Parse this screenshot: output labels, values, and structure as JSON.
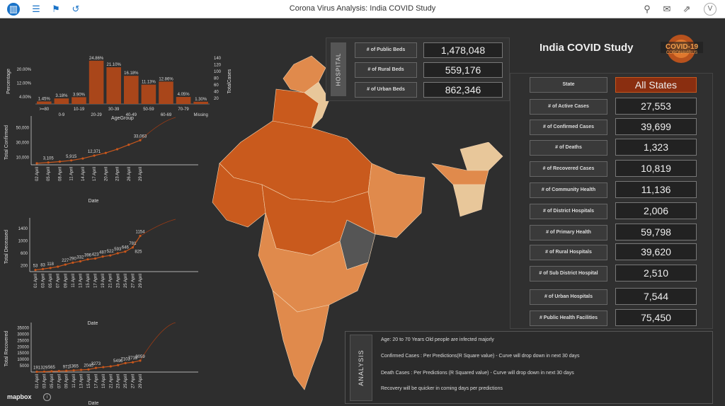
{
  "window": {
    "title": "Corona Virus Analysis: India COVID Study"
  },
  "toolbar": {
    "avatar_initial": "V"
  },
  "logo": {
    "line1": "COVID-19",
    "line2": "CORONAVIRUS"
  },
  "study_title": "India COVID Study",
  "hospital": {
    "tab": "HOSPITAL",
    "rows": [
      {
        "label": "# of Public Beds",
        "value": "1,478,048"
      },
      {
        "label": "# of Rural Beds",
        "value": "559,176"
      },
      {
        "label": "# of Urban Beds",
        "value": "862,346"
      }
    ]
  },
  "state_filter": {
    "label": "State",
    "value": "All States"
  },
  "kpis": [
    {
      "label": "# of Active Cases",
      "value": "27,553"
    },
    {
      "label": "# of Confirmed Cases",
      "value": "39,699"
    },
    {
      "label": "# of Deaths",
      "value": "1,323"
    },
    {
      "label": "# of Recovered Cases",
      "value": "10,819"
    },
    {
      "label": "# of Community Health",
      "value": "11,136"
    },
    {
      "label": "# of District Hospitals",
      "value": "2,006"
    },
    {
      "label": "# of Primary Health",
      "value": "59,798"
    },
    {
      "label": "# of Rural Hospitals",
      "value": "39,620"
    },
    {
      "label": "# of Sub District Hospital",
      "value": "2,510"
    },
    {
      "label": "# of Urban Hospitals",
      "value": "7,544"
    },
    {
      "label": "# Public Health Facilities",
      "value": "75,450"
    }
  ],
  "analysis": {
    "tab": "ANALYSIS",
    "lines": [
      "Age: 20 to 70 Years Old people are infected majorly",
      "Confirmed Cases : Per Predictions(R Square value) - Curve will drop down in next 30 days",
      "Death Cases : Per Predictions (R Squared value) - Curve will drop down in next 30 days",
      "Recovery will be quicker in coming days per predictions"
    ]
  },
  "attribution": "mapbox",
  "colors": {
    "accent": "#c8571c",
    "bar": "#a9461a",
    "map_dark": "#c95a1d",
    "map_mid": "#e08a4c",
    "map_light": "#e8c79a"
  },
  "chart_data": [
    {
      "type": "bar",
      "categories": [
        ">=80",
        "0-9",
        "10-19",
        "20-29",
        "30-39",
        "40-49",
        "50-59",
        "60-69",
        "70-79",
        "Missing"
      ],
      "values": [
        1.45,
        3.18,
        3.9,
        24.86,
        21.1,
        16.18,
        11.13,
        12.86,
        4.05,
        1.3
      ],
      "data_labels": [
        "1.45%",
        "3.18%",
        "3.90%",
        "24.86%",
        "21.10%",
        "16.18%",
        "11.13%",
        "12.86%",
        "4.05%",
        "1.30%"
      ],
      "ylabel": "Percentage",
      "y2label": "TotalCases",
      "xlabel": "AgeGroup",
      "yticks": [
        "4.00%",
        "12.00%",
        "20.00%"
      ],
      "y2ticks": [
        "20",
        "40",
        "60",
        "80",
        "100",
        "120",
        "140"
      ],
      "ylim": [
        0,
        26
      ]
    },
    {
      "type": "line",
      "ylabel": "Total Confirmed",
      "xlabel": "Date",
      "x": [
        "02 April",
        "05 April",
        "08 April",
        "11 April",
        "14 April",
        "17 April",
        "20 April",
        "23 April",
        "26 April",
        "29 April"
      ],
      "values": [
        2000,
        3105,
        4300,
        5915,
        8500,
        12371,
        16000,
        21000,
        27000,
        33063
      ],
      "data_labels": [
        "",
        "3,105",
        "",
        "5,915",
        "",
        "12,371",
        "",
        "",
        "",
        "33,063"
      ],
      "yticks": [
        "10,000",
        "30,000",
        "50,000"
      ],
      "ylim": [
        0,
        60000
      ]
    },
    {
      "type": "line",
      "ylabel": "Total Deceased",
      "xlabel": "Date",
      "x": [
        "01 April",
        "03 April",
        "05 April",
        "07 April",
        "09 April",
        "11 April",
        "13 April",
        "15 April",
        "17 April",
        "19 April",
        "21 April",
        "23 April",
        "25 April",
        "27 April",
        "29 April"
      ],
      "values": [
        53,
        83,
        118,
        160,
        227,
        290,
        332,
        396,
        423,
        487,
        522,
        593,
        646,
        781,
        1154
      ],
      "data_labels": [
        "53",
        "83",
        "118",
        "",
        "227",
        "290",
        "332",
        "396",
        "423",
        "487",
        "522",
        "593",
        "646",
        "781",
        "1154"
      ],
      "extra_label": "825",
      "yticks": [
        "200",
        "600",
        "1000",
        "1400"
      ],
      "ylim": [
        0,
        1600
      ]
    },
    {
      "type": "line",
      "ylabel": "Total Recovered",
      "xlabel": "Date",
      "x": [
        "01 April",
        "03 April",
        "05 April",
        "07 April",
        "09 April",
        "11 April",
        "13 April",
        "15 April",
        "17 April",
        "19 April",
        "21 April",
        "23 April",
        "25 April",
        "27 April",
        "29 April"
      ],
      "values": [
        191,
        329,
        565,
        800,
        972,
        1365,
        1700,
        2040,
        3273,
        3900,
        4500,
        5496,
        7103,
        7739,
        9059
      ],
      "data_labels": [
        "191",
        "329",
        "565",
        "",
        "972",
        "1365",
        "",
        "2040",
        "3273",
        "",
        "",
        "5496",
        "7103",
        "7739",
        "9059"
      ],
      "yticks": [
        "5000",
        "10000",
        "15000",
        "20000",
        "25000",
        "30000",
        "35000"
      ],
      "ylim": [
        0,
        37000
      ]
    }
  ]
}
